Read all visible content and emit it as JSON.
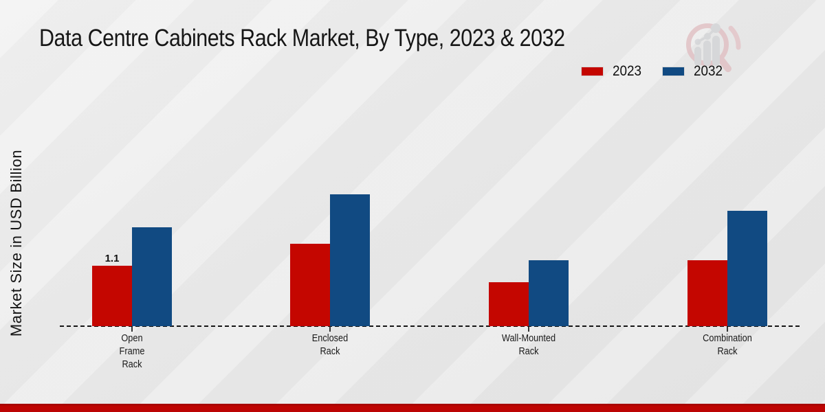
{
  "title": "Data Centre Cabinets Rack Market, By Type, 2023 & 2032",
  "y_axis_label": "Market Size in USD Billion",
  "legend": [
    {
      "label": "2023",
      "color": "#c40600"
    },
    {
      "label": "2032",
      "color": "#114a82"
    }
  ],
  "watermark_icon": "magnifier-bar-chart-logo",
  "footer_band_color": "#bb0404",
  "chart_data": {
    "type": "bar",
    "title": "Data Centre Cabinets Rack Market, By Type, 2023 & 2032",
    "categories": [
      "Open Frame Rack",
      "Enclosed Rack",
      "Wall-Mounted Rack",
      "Combination Rack"
    ],
    "category_label_lines": [
      [
        "Open",
        "Frame",
        "Rack"
      ],
      [
        "Enclosed",
        "Rack"
      ],
      [
        "Wall-Mounted",
        "Rack"
      ],
      [
        "Combination",
        "Rack"
      ]
    ],
    "series": [
      {
        "name": "2023",
        "color": "#c40600",
        "values": [
          1.1,
          1.5,
          0.8,
          1.2
        ]
      },
      {
        "name": "2032",
        "color": "#114a82",
        "values": [
          1.8,
          2.4,
          1.2,
          2.1
        ]
      }
    ],
    "data_labels": [
      {
        "series": "2023",
        "category": "Open Frame Rack",
        "text": "1.1"
      }
    ],
    "xlabel": "",
    "ylabel": "Market Size in USD Billion",
    "ylim": [
      0,
      2.5
    ],
    "grid": false,
    "y_axis_ticks_visible": false,
    "baseline_style": "dashed",
    "legend_position": "top-right"
  }
}
